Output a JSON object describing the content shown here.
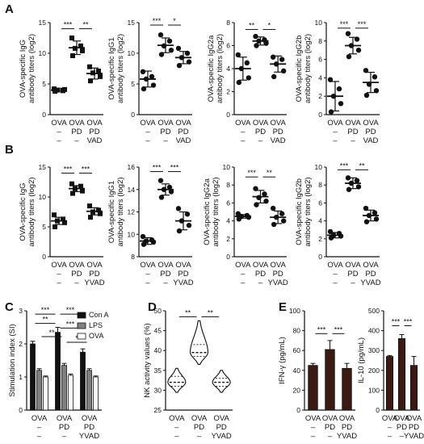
{
  "panels": [
    {
      "letter": "A"
    },
    {
      "letter": "B"
    },
    {
      "letter": "C"
    },
    {
      "letter": "D"
    },
    {
      "letter": "E"
    }
  ],
  "chart_data": [
    {
      "id": "A1",
      "type": "scatter",
      "ylabel": [
        "OVA-specific IgG",
        "antibody titers (log2)"
      ],
      "ylim": [
        0,
        15
      ],
      "yticks": [
        "0",
        "5",
        "10",
        "15"
      ],
      "categories": [
        [
          "OVA",
          "–",
          "–"
        ],
        [
          "OVA",
          "PD",
          "–"
        ],
        [
          "OVA",
          "PD",
          "VAD"
        ]
      ],
      "marker": "square",
      "points": [
        [
          4.2,
          3.9,
          4.0,
          4.1,
          3.8
        ],
        [
          12.5,
          11.2,
          10.8,
          10.4,
          9.6
        ],
        [
          7.8,
          7.1,
          6.8,
          6.2,
          5.5
        ]
      ],
      "mean": [
        4.0,
        10.9,
        6.7
      ],
      "sd": [
        0.3,
        1.1,
        0.9
      ],
      "sig": [
        {
          "from": 0,
          "to": 1,
          "label": "***",
          "y": 14.0
        },
        {
          "from": 1,
          "to": 2,
          "label": "**",
          "y": 14.0
        }
      ]
    },
    {
      "id": "A2",
      "type": "scatter",
      "ylabel": [
        "OVA-specific IgG1",
        "antibody titers (log2)"
      ],
      "ylim": [
        0,
        15
      ],
      "yticks": [
        "0",
        "5",
        "10",
        "15"
      ],
      "categories": [
        [
          "OVA",
          "–",
          "–"
        ],
        [
          "OVA",
          "PD",
          "–"
        ],
        [
          "OVA",
          "PD",
          "VAD"
        ]
      ],
      "marker": "circle",
      "points": [
        [
          7.0,
          6.2,
          5.8,
          4.8,
          4.2
        ],
        [
          13.0,
          12.0,
          11.2,
          10.5,
          9.8
        ],
        [
          10.8,
          10.0,
          9.3,
          8.6,
          8.0
        ]
      ],
      "mean": [
        5.8,
        11.3,
        9.3
      ],
      "sd": [
        1.3,
        1.2,
        1.0
      ],
      "sig": [
        {
          "from": 0,
          "to": 1,
          "label": "***",
          "y": 14.6
        },
        {
          "from": 1,
          "to": 2,
          "label": "*",
          "y": 14.6
        }
      ]
    },
    {
      "id": "A3",
      "type": "scatter",
      "ylabel": [
        "OVA-specific IgG2a",
        "antibody titers (log2)"
      ],
      "ylim": [
        0,
        8
      ],
      "yticks": [
        "0",
        "2",
        "4",
        "6",
        "8"
      ],
      "categories": [
        [
          "OVA",
          "–",
          "–"
        ],
        [
          "OVA",
          "PD",
          "–"
        ],
        [
          "OVA",
          "PD",
          "VAD"
        ]
      ],
      "marker": "circle",
      "points": [
        [
          5.2,
          4.5,
          4.0,
          3.2,
          2.8
        ],
        [
          6.8,
          6.5,
          6.4,
          6.2,
          6.0
        ],
        [
          5.0,
          4.8,
          4.4,
          3.8,
          3.3
        ]
      ],
      "mean": [
        4.0,
        6.4,
        4.4
      ],
      "sd": [
        1.0,
        0.35,
        0.7
      ],
      "sig": [
        {
          "from": 0,
          "to": 1,
          "label": "**",
          "y": 7.4
        },
        {
          "from": 1,
          "to": 2,
          "label": "*",
          "y": 7.4
        }
      ]
    },
    {
      "id": "A4",
      "type": "scatter",
      "ylabel": [
        "OVA-specific IgG2b",
        "antibody titers (log2)"
      ],
      "ylim": [
        0,
        10
      ],
      "yticks": [
        "0",
        "2",
        "4",
        "6",
        "8",
        "10"
      ],
      "categories": [
        [
          "OVA",
          "–",
          "–"
        ],
        [
          "OVA",
          "PD",
          "–"
        ],
        [
          "OVA",
          "PD",
          "VAD"
        ]
      ],
      "marker": "circle",
      "points": [
        [
          3.8,
          2.8,
          2.0,
          1.2,
          0.3
        ],
        [
          8.8,
          8.2,
          7.5,
          7.0,
          6.3
        ],
        [
          4.8,
          4.1,
          3.3,
          2.6,
          2.1
        ]
      ],
      "mean": [
        2.0,
        7.5,
        3.5
      ],
      "sd": [
        1.6,
        0.9,
        1.1
      ],
      "sig": [
        {
          "from": 0,
          "to": 1,
          "label": "***",
          "y": 9.4
        },
        {
          "from": 1,
          "to": 2,
          "label": "***",
          "y": 9.4
        }
      ]
    },
    {
      "id": "B1",
      "type": "scatter",
      "ylabel": [
        "OVA-specific IgG",
        "antibody titers (log2)"
      ],
      "ylim": [
        0,
        15
      ],
      "yticks": [
        "0",
        "5",
        "10",
        "15"
      ],
      "categories": [
        [
          "OVA",
          "–",
          "–"
        ],
        [
          "OVA",
          "PD",
          "–"
        ],
        [
          "OVA",
          "PD",
          "YVAD"
        ]
      ],
      "marker": "square",
      "points": [
        [
          7.0,
          6.3,
          6.0,
          5.7,
          5.0
        ],
        [
          12.2,
          11.8,
          11.4,
          11.0,
          10.6
        ],
        [
          8.5,
          7.8,
          7.5,
          7.2,
          6.6
        ]
      ],
      "mean": [
        6.0,
        11.4,
        7.6
      ],
      "sd": [
        0.6,
        0.5,
        0.6
      ],
      "sig": [
        {
          "from": 0,
          "to": 1,
          "label": "***",
          "y": 14.0
        },
        {
          "from": 1,
          "to": 2,
          "label": "***",
          "y": 14.0
        }
      ]
    },
    {
      "id": "B2",
      "type": "scatter",
      "ylabel": [
        "OVA-specific IgG1",
        "antibody titers (log2)"
      ],
      "ylim": [
        8,
        16
      ],
      "yticks": [
        "8",
        "10",
        "12",
        "14",
        "16"
      ],
      "categories": [
        [
          "OVA",
          "–",
          "–"
        ],
        [
          "OVA",
          "PD",
          "–"
        ],
        [
          "OVA",
          "PD",
          "YVAD"
        ]
      ],
      "marker": "circle",
      "points": [
        [
          9.8,
          9.5,
          9.4,
          9.3,
          9.1
        ],
        [
          14.8,
          14.2,
          14.0,
          13.8,
          13.3
        ],
        [
          12.3,
          11.8,
          11.2,
          10.8,
          10.3
        ]
      ],
      "mean": [
        9.4,
        14.0,
        11.2
      ],
      "sd": [
        0.3,
        0.5,
        0.8
      ],
      "sig": [
        {
          "from": 0,
          "to": 1,
          "label": "***",
          "y": 15.6
        },
        {
          "from": 1,
          "to": 2,
          "label": "***",
          "y": 15.6
        }
      ]
    },
    {
      "id": "B3",
      "type": "scatter",
      "ylabel": [
        "OVA-specific IgG2a",
        "antibody titers (log2)"
      ],
      "ylim": [
        0,
        10
      ],
      "yticks": [
        "0",
        "2",
        "4",
        "6",
        "8",
        "10"
      ],
      "categories": [
        [
          "OVA",
          "–",
          "–"
        ],
        [
          "OVA",
          "PD",
          "–"
        ],
        [
          "OVA",
          "PD",
          "YVAD"
        ]
      ],
      "marker": "circle",
      "points": [
        [
          4.8,
          4.6,
          4.5,
          4.4,
          4.2
        ],
        [
          7.6,
          7.0,
          6.6,
          6.2,
          5.8
        ],
        [
          5.4,
          4.8,
          4.4,
          4.0,
          3.6
        ]
      ],
      "mean": [
        4.5,
        6.7,
        4.4
      ],
      "sd": [
        0.2,
        0.7,
        0.7
      ],
      "sig": [
        {
          "from": 0,
          "to": 1,
          "label": "***",
          "y": 8.9
        },
        {
          "from": 1,
          "to": 2,
          "label": "**",
          "y": 8.9
        }
      ]
    },
    {
      "id": "B4",
      "type": "scatter",
      "ylabel": [
        "OVA-specific IgG2b",
        "antibody titers (log2)"
      ],
      "ylim": [
        0,
        10
      ],
      "yticks": [
        "0",
        "2",
        "4",
        "6",
        "8",
        "10"
      ],
      "categories": [
        [
          "OVA",
          "–",
          "–"
        ],
        [
          "OVA",
          "PD",
          "–"
        ],
        [
          "OVA",
          "PD",
          "YVAD"
        ]
      ],
      "marker": "circle",
      "points": [
        [
          2.8,
          2.6,
          2.4,
          2.3,
          2.1
        ],
        [
          8.8,
          8.5,
          8.2,
          7.8,
          7.5
        ],
        [
          5.4,
          4.9,
          4.6,
          4.2,
          3.9
        ]
      ],
      "mean": [
        2.4,
        8.2,
        4.6
      ],
      "sd": [
        0.3,
        0.6,
        0.6
      ],
      "sig": [
        {
          "from": 0,
          "to": 1,
          "label": "***",
          "y": 9.7
        },
        {
          "from": 1,
          "to": 2,
          "label": "**",
          "y": 9.7
        }
      ]
    },
    {
      "id": "C",
      "type": "bar",
      "ylabel": [
        "Stimulation index (SI)"
      ],
      "ylim": [
        0,
        3
      ],
      "yticks": [
        "0",
        "1",
        "2",
        "3"
      ],
      "categories": [
        [
          "OVA",
          "–",
          "–"
        ],
        [
          "OVA",
          "PD",
          "–"
        ],
        [
          "OVA",
          "PD",
          "YVAD"
        ]
      ],
      "series": [
        {
          "name": "Con A",
          "color": "#111111",
          "values": [
            2.0,
            2.35,
            1.75
          ],
          "err": [
            0.08,
            0.15,
            0.1
          ]
        },
        {
          "name": "LPS",
          "color": "#808080",
          "values": [
            1.2,
            1.35,
            1.2
          ],
          "err": [
            0.05,
            0.06,
            0.05
          ]
        },
        {
          "name": "OVA",
          "color": "#ffffff",
          "values": [
            1.0,
            1.05,
            1.0
          ],
          "err": [
            0.03,
            0.04,
            0.03
          ]
        }
      ],
      "sig": [
        {
          "x1": 0.0,
          "x2": 1.0,
          "label": "***",
          "y": 2.9
        },
        {
          "x1": 1.0,
          "x2": 2.0,
          "label": "***",
          "y": 2.9
        },
        {
          "x1": 0.0,
          "x2": 1.0,
          "label": "**",
          "y": 2.62
        },
        {
          "x1": 1.0,
          "x2": 2.0,
          "label": "***",
          "y": 2.48
        },
        {
          "x1": 0.27,
          "x2": 1.27,
          "label": "**",
          "y": 2.22
        },
        {
          "x1": 1.27,
          "x2": 2.27,
          "label": "*",
          "y": 2.05
        }
      ]
    },
    {
      "id": "D",
      "type": "violin",
      "ylabel": [
        "NK activity values (%)"
      ],
      "ylim": [
        25,
        50
      ],
      "yticks": [
        "25",
        "30",
        "35",
        "40",
        "45",
        "50"
      ],
      "categories": [
        [
          "OVA",
          "–",
          "–"
        ],
        [
          "OVA",
          "PD",
          "–"
        ],
        [
          "OVA",
          "PD",
          "YVAD"
        ]
      ],
      "violins": [
        {
          "min": 29.5,
          "max": 35.5,
          "median": 32.0,
          "q1": 31.0,
          "q3": 33.5
        },
        {
          "min": 36.5,
          "max": 47.5,
          "median": 39.5,
          "q1": 38.5,
          "q3": 41.5
        },
        {
          "min": 29.5,
          "max": 35.0,
          "median": 32.0,
          "q1": 31.0,
          "q3": 33.0
        }
      ],
      "sig": [
        {
          "from": 0,
          "to": 1,
          "label": "**",
          "y": 48.5
        },
        {
          "from": 1,
          "to": 2,
          "label": "**",
          "y": 48.5
        }
      ]
    },
    {
      "id": "E1",
      "type": "bar",
      "ylabel": [
        "IFN-γ (pg/mL)"
      ],
      "ylim": [
        0,
        100
      ],
      "yticks": [
        "0",
        "20",
        "40",
        "60",
        "80",
        "100"
      ],
      "categories": [
        [
          "OVA",
          "–",
          "–"
        ],
        [
          "OVA",
          "PD",
          "–"
        ],
        [
          "OVA",
          "PD",
          "YVAD"
        ]
      ],
      "series": [
        {
          "name": "",
          "color": "#3a1a12",
          "values": [
            45,
            61,
            42
          ],
          "err": [
            2,
            9,
            5
          ]
        }
      ],
      "sig": [
        {
          "from": 0,
          "to": 1,
          "label": "***",
          "y": 77
        },
        {
          "from": 1,
          "to": 2,
          "label": "***",
          "y": 77
        }
      ]
    },
    {
      "id": "E2",
      "type": "bar",
      "ylabel": [
        "IL-10 (pg/mL)"
      ],
      "ylim": [
        0,
        500
      ],
      "yticks": [
        "0",
        "100",
        "200",
        "300",
        "400",
        "500"
      ],
      "categories": [
        [
          "OVA",
          "–",
          "–"
        ],
        [
          "OVA",
          "PD",
          "–"
        ],
        [
          "OVA",
          "PD",
          "YVAD"
        ]
      ],
      "series": [
        {
          "name": "",
          "color": "#3a1a12",
          "values": [
            270,
            360,
            225
          ],
          "err": [
            5,
            20,
            45
          ]
        }
      ],
      "sig": [
        {
          "from": 0,
          "to": 1,
          "label": "***",
          "y": 425
        },
        {
          "from": 1,
          "to": 2,
          "label": "***",
          "y": 425
        }
      ]
    }
  ]
}
